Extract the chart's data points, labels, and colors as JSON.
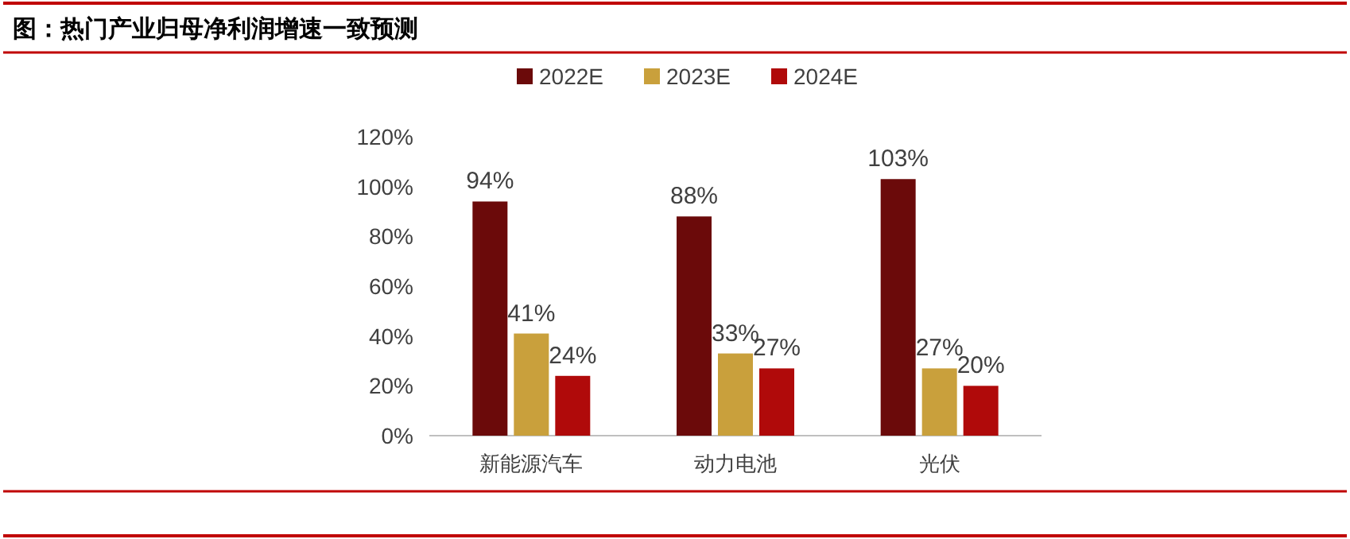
{
  "chart_data": {
    "type": "bar",
    "title": "图：热门产业归母净利润增速一致预测",
    "categories": [
      "新能源汽车",
      "动力电池",
      "光伏"
    ],
    "series": [
      {
        "name": "2022E",
        "color": "#6b0a0a",
        "values": [
          94,
          88,
          103
        ],
        "value_labels": [
          "94%",
          "88%",
          "103%"
        ]
      },
      {
        "name": "2023E",
        "color": "#c9a03c",
        "values": [
          41,
          33,
          27
        ],
        "value_labels": [
          "41%",
          "33%",
          "27%"
        ]
      },
      {
        "name": "2024E",
        "color": "#b00a0a",
        "values": [
          24,
          27,
          20
        ],
        "value_labels": [
          "24%",
          "27%",
          "20%"
        ]
      }
    ],
    "ylim": [
      0,
      120
    ],
    "yticks": [
      {
        "value": 0,
        "label": "0%"
      },
      {
        "value": 20,
        "label": "20%"
      },
      {
        "value": 40,
        "label": "40%"
      },
      {
        "value": 60,
        "label": "60%"
      },
      {
        "value": 80,
        "label": "80%"
      },
      {
        "value": 100,
        "label": "100%"
      },
      {
        "value": 120,
        "label": "120%"
      }
    ],
    "grid": false,
    "legend": "top"
  }
}
